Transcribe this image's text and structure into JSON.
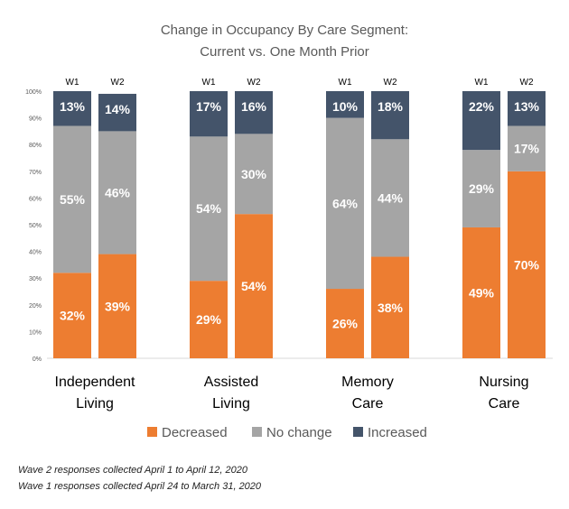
{
  "chart_data": {
    "type": "bar",
    "stacked": true,
    "title_lines": [
      "Change in Occupancy By Care Segment:",
      "Current vs. One Month Prior"
    ],
    "groups": [
      {
        "label_lines": [
          "Independent",
          "Living"
        ],
        "bars": [
          {
            "label": "W1",
            "values": [
              32,
              55,
              13
            ]
          },
          {
            "label": "W2",
            "values": [
              39,
              46,
              14
            ]
          }
        ]
      },
      {
        "label_lines": [
          "Assisted",
          "Living"
        ],
        "bars": [
          {
            "label": "W1",
            "values": [
              29,
              54,
              17
            ]
          },
          {
            "label": "W2",
            "values": [
              54,
              30,
              16
            ]
          }
        ]
      },
      {
        "label_lines": [
          "Memory",
          "Care"
        ],
        "bars": [
          {
            "label": "W1",
            "values": [
              26,
              64,
              10
            ]
          },
          {
            "label": "W2",
            "values": [
              38,
              44,
              18
            ]
          }
        ]
      },
      {
        "label_lines": [
          "Nursing",
          "Care"
        ],
        "bars": [
          {
            "label": "W1",
            "values": [
              49,
              29,
              22
            ]
          },
          {
            "label": "W2",
            "values": [
              70,
              17,
              13
            ]
          }
        ]
      }
    ],
    "series": [
      {
        "name": "Decreased",
        "color": "#ed7d31"
      },
      {
        "name": "No change",
        "color": "#a5a5a5"
      },
      {
        "name": "Increased",
        "color": "#44546a"
      }
    ],
    "yticks": [
      "0%",
      "10%",
      "20%",
      "30%",
      "40%",
      "50%",
      "60%",
      "70%",
      "80%",
      "90%",
      "100%"
    ],
    "ylim": [
      0,
      100
    ],
    "legend_position": "bottom",
    "grid": false
  },
  "footnotes": {
    "line1": "Wave 2 responses collected April 1 to April 12, 2020",
    "line2": "Wave 1 responses collected April 24 to March 31, 2020"
  }
}
